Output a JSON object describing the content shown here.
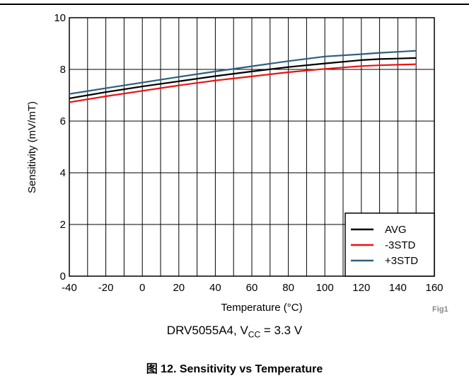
{
  "header_fragment": "...",
  "chart_data": {
    "type": "line",
    "xlabel": "Temperature (°C)",
    "ylabel": "Sensitivity (mV/mT)",
    "xlim": [
      -40,
      160
    ],
    "ylim": [
      0,
      10
    ],
    "x_ticks": [
      -40,
      -20,
      0,
      20,
      40,
      60,
      80,
      100,
      120,
      140,
      160
    ],
    "y_ticks": [
      0,
      2,
      4,
      6,
      8,
      10
    ],
    "x_grid_step": 10,
    "grid": true,
    "legend_position": "bottom-right",
    "x": [
      -40,
      -20,
      0,
      20,
      40,
      60,
      80,
      100,
      120,
      130,
      140,
      150
    ],
    "series": [
      {
        "name": "AVG",
        "color": "#000000",
        "values": [
          6.88,
          7.12,
          7.34,
          7.54,
          7.74,
          7.92,
          8.09,
          8.23,
          8.36,
          8.4,
          8.42,
          8.44
        ]
      },
      {
        "name": "-3STD",
        "color": "#ee1111",
        "values": [
          6.73,
          6.96,
          7.17,
          7.38,
          7.57,
          7.73,
          7.89,
          8.02,
          8.13,
          8.16,
          8.18,
          8.2
        ]
      },
      {
        "name": "+3STD",
        "color": "#2e5f7f",
        "values": [
          7.05,
          7.27,
          7.49,
          7.71,
          7.92,
          8.12,
          8.32,
          8.5,
          8.59,
          8.64,
          8.68,
          8.72
        ]
      }
    ]
  },
  "subcaption": {
    "prefix": "DRV5055A4, V",
    "sub": "CC",
    "suffix": " = 3.3 V"
  },
  "figure_caption": "图 12. Sensitivity vs Temperature",
  "fig_tag": "Fig1"
}
